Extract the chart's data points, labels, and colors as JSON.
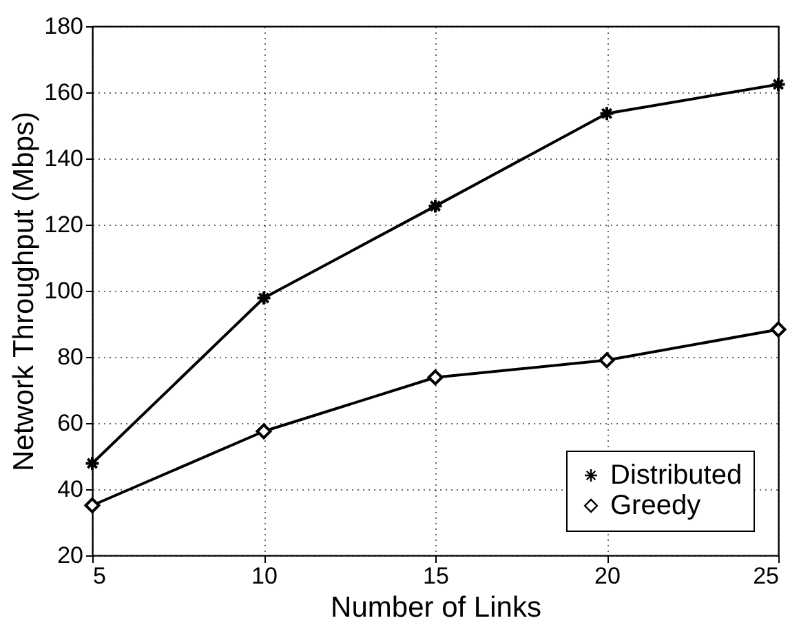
{
  "chart_data": {
    "type": "line",
    "xlabel": "Number of Links",
    "ylabel": "Network Throughput (Mbps)",
    "x": [
      5,
      10,
      15,
      20,
      25
    ],
    "series": [
      {
        "name": "Distributed",
        "color": "#000000",
        "marker": "cross",
        "values": [
          47.8,
          97.8,
          125.6,
          153.6,
          162.4
        ]
      },
      {
        "name": "Greedy",
        "color": "#000000",
        "marker": "diamond",
        "values": [
          35.1,
          57.5,
          73.8,
          79,
          88.3
        ]
      }
    ],
    "xlim": [
      5,
      25
    ],
    "xticks": [
      5,
      10,
      15,
      20,
      25
    ],
    "ylim": [
      20,
      180
    ],
    "yticks": [
      20,
      40,
      60,
      80,
      100,
      120,
      140,
      160,
      180
    ],
    "grid": true,
    "legend": "bottom right",
    "line_style": "solid"
  }
}
